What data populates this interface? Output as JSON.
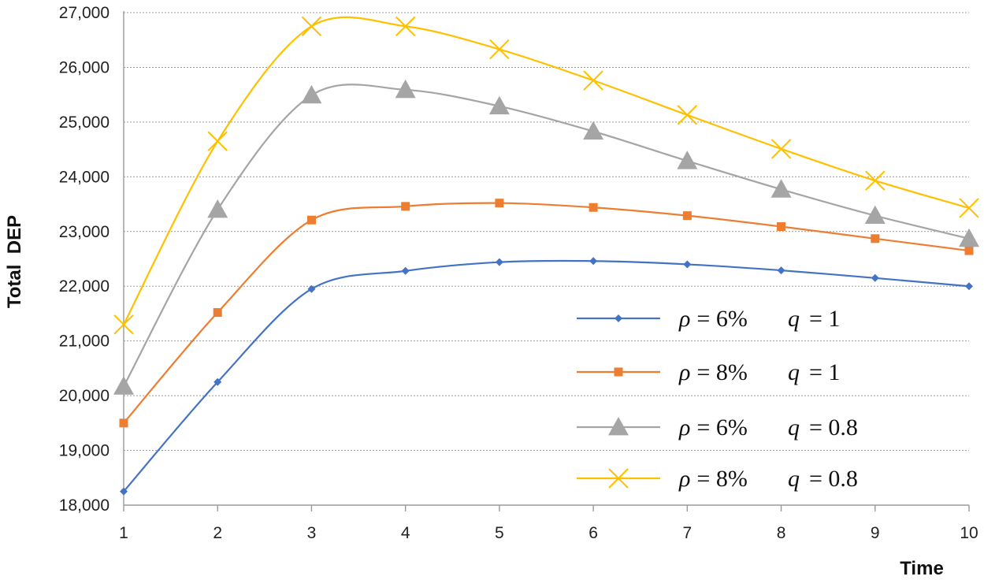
{
  "chart_data": {
    "type": "line",
    "title": "",
    "xlabel": "Time",
    "ylabel": "Total  DEP",
    "x": [
      1,
      2,
      3,
      4,
      5,
      6,
      7,
      8,
      9,
      10
    ],
    "x_tick_labels": [
      "1",
      "2",
      "3",
      "4",
      "5",
      "6",
      "7",
      "8",
      "9",
      "10"
    ],
    "ylim": [
      18000,
      27000
    ],
    "y_ticks": [
      18000,
      19000,
      20000,
      21000,
      22000,
      23000,
      24000,
      25000,
      26000,
      27000
    ],
    "y_tick_labels": [
      "18,000",
      "19,000",
      "20,000",
      "21,000",
      "22,000",
      "23,000",
      "24,000",
      "25,000",
      "26,000",
      "27,000"
    ],
    "grid": true,
    "legend_position": "lower-right",
    "series": [
      {
        "name": "ρ = 6%  q = 1",
        "rho_text": "= 6%",
        "q_text": "= 1",
        "color": "#4472C4",
        "marker": "diamond",
        "values": [
          18250,
          20250,
          21950,
          22280,
          22440,
          22460,
          22400,
          22290,
          22150,
          22000
        ]
      },
      {
        "name": "ρ = 8%  q = 1",
        "rho_text": "= 8%",
        "q_text": "= 1",
        "color": "#ED7D31",
        "marker": "square",
        "values": [
          19500,
          21520,
          23210,
          23460,
          23520,
          23440,
          23290,
          23090,
          22870,
          22650
        ]
      },
      {
        "name": "ρ = 6%  q = 0.8",
        "rho_text": "= 6%",
        "q_text": "= 0.8",
        "color": "#A5A5A5",
        "marker": "triangle",
        "values": [
          20170,
          23400,
          25490,
          25590,
          25290,
          24830,
          24290,
          23770,
          23290,
          22870
        ]
      },
      {
        "name": "ρ = 8%  q = 0.8",
        "rho_text": "= 8%",
        "q_text": "= 0.8",
        "color": "#FFC000",
        "marker": "x",
        "values": [
          21300,
          24650,
          26750,
          26750,
          26330,
          25760,
          25130,
          24510,
          23930,
          23430
        ]
      }
    ],
    "legend_symbols": {
      "rho": "ρ",
      "q": "q"
    }
  }
}
